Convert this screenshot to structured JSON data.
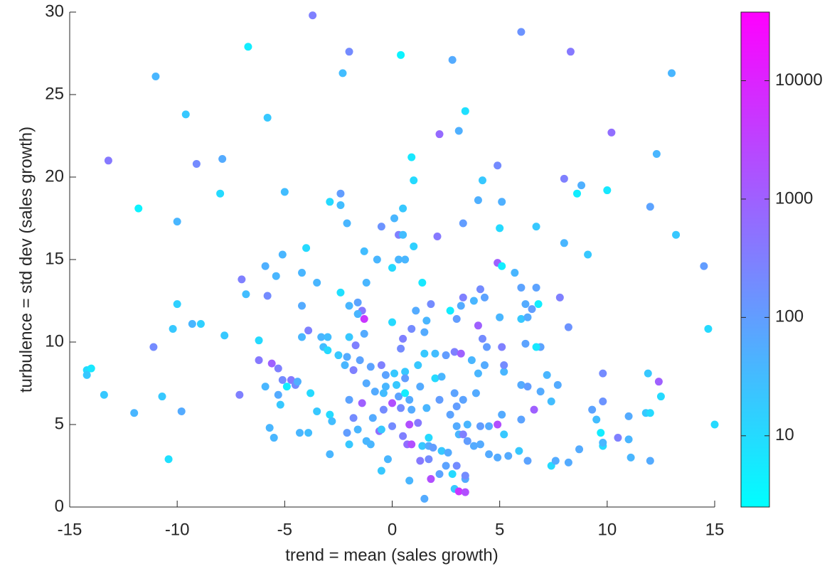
{
  "chart_data": {
    "type": "scatter",
    "xlabel": "trend = mean (sales growth)",
    "ylabel": "turbulence = std dev (sales growth)",
    "xlim": [
      -15,
      15
    ],
    "xticks": [
      -15,
      -10,
      -5,
      0,
      5,
      10,
      15
    ],
    "ylim": [
      0,
      30
    ],
    "yticks": [
      0,
      5,
      10,
      15,
      20,
      25,
      30
    ],
    "colorbar": {
      "log": true,
      "lim": [
        2.5,
        38000
      ],
      "ticks": [
        10,
        100,
        1000,
        10000
      ],
      "colormap": [
        "#00ffff",
        "#ff00ff"
      ]
    },
    "x": [
      -3.7,
      6.0,
      -6.7,
      -2.0,
      8.3,
      0.4,
      2.8,
      -11.0,
      -2.3,
      13.0,
      -9.6,
      -5.8,
      3.4,
      2.2,
      3.1,
      10.2,
      -13.2,
      -9.1,
      -7.9,
      0.9,
      12.3,
      -11.8,
      -8.0,
      -5.0,
      -2.4,
      1.0,
      4.2,
      4.9,
      8.0,
      8.8,
      8.6,
      10.0,
      -10.0,
      -2.9,
      -2.4,
      -2.1,
      -0.5,
      0.1,
      0.5,
      4.0,
      5.1,
      12.0,
      -4.0,
      -5.1,
      0.3,
      0.5,
      1.0,
      2.1,
      3.3,
      5.0,
      6.7,
      8.0,
      13.2,
      9.1,
      14.5,
      -1.3,
      -0.7,
      0.0,
      0.3,
      0.6,
      4.9,
      5.1,
      5.7,
      -5.9,
      -5.4,
      -4.2,
      -3.5,
      -7.0,
      -6.8,
      -5.8,
      -4.2,
      -2.4,
      -1.2,
      1.4,
      3.3,
      3.2,
      3.8,
      4.3,
      4.1,
      6.0,
      6.7,
      7.8,
      6.2,
      6.8,
      6.5,
      -10.0,
      -9.3,
      -8.9,
      -10.2,
      -7.8,
      -6.2,
      -11.1,
      -2.0,
      -1.6,
      -1.4,
      -1.3,
      -1.6,
      0.0,
      1.1,
      1.8,
      2.7,
      3.0,
      4.0,
      5.0,
      6.0,
      6.3,
      8.2,
      14.7,
      -4.2,
      -3.9,
      -3.3,
      -3.0,
      -2.0,
      -1.3,
      0.9,
      1.5,
      1.6,
      0.5,
      0.4,
      4.2,
      -14.2,
      -14.0,
      -14.2,
      -13.4,
      -12.0,
      -10.7,
      -9.8,
      -10.4,
      -7.1,
      -6.2,
      -5.6,
      -5.3,
      -5.1,
      -4.7,
      -4.5,
      -5.9,
      -5.3,
      -5.2,
      -4.9,
      -3.8,
      -4.4,
      -5.7,
      -5.5,
      -4.3,
      -3.9,
      -3.5,
      -2.9,
      -2.8,
      -2.9,
      -3.2,
      -3.0,
      -2.5,
      -2.1,
      -1.7,
      -1.5,
      -1.0,
      -0.5,
      -0.3,
      0.1,
      0.6,
      0.6,
      1.2,
      1.5,
      2.0,
      2.5,
      2.9,
      3.2,
      3.7,
      4.4,
      5.1,
      6.2,
      6.9,
      6.7,
      -2.2,
      -1.8,
      -1.2,
      -0.8,
      -0.3,
      0.3,
      0.6,
      0.8,
      1.3,
      2.0,
      2.3,
      2.9,
      3.3,
      3.9,
      4.0,
      4.3,
      5.2,
      5.2,
      6.0,
      6.3,
      6.9,
      7.2,
      7.7,
      9.8,
      11.9,
      12.4,
      12.5,
      -2.0,
      -1.4,
      -0.9,
      -0.4,
      0.0,
      0.4,
      0.9,
      1.6,
      2.2,
      2.7,
      3.0,
      3.5,
      4.1,
      4.5,
      4.9,
      5.1,
      5.2,
      6.0,
      6.6,
      7.4,
      9.3,
      9.5,
      9.8,
      11.0,
      11.8,
      12.0,
      15.0,
      -1.8,
      -2.1,
      -1.6,
      -0.6,
      -0.5,
      0.0,
      0.5,
      0.7,
      0.9,
      1.4,
      1.7,
      1.9,
      2.3,
      2.6,
      3.0,
      3.1,
      3.3,
      3.5,
      3.8,
      4.1,
      4.5,
      4.9,
      5.4,
      5.9,
      6.3,
      7.4,
      7.6,
      8.2,
      8.7,
      9.7,
      9.8,
      9.8,
      10.5,
      11.0,
      11.1,
      12.0,
      -2.0,
      -1.2,
      -1.0,
      -0.5,
      -0.2,
      1.3,
      1.7,
      1.8,
      2.2,
      2.5,
      2.8,
      3.0,
      2.9,
      3.1,
      3.4,
      3.4,
      3.4,
      0.8,
      1.5,
      1.7,
      1.2,
      0.8,
      -0.4,
      0.2
    ],
    "y": [
      29.8,
      28.8,
      27.9,
      27.6,
      27.6,
      27.4,
      27.1,
      26.1,
      26.3,
      26.3,
      23.8,
      23.6,
      24.0,
      22.6,
      22.8,
      22.7,
      21.0,
      20.8,
      21.1,
      21.2,
      21.4,
      18.1,
      19.0,
      19.1,
      19.0,
      19.8,
      19.8,
      20.7,
      19.9,
      19.5,
      19.0,
      19.2,
      17.3,
      18.5,
      18.3,
      17.2,
      17.0,
      17.5,
      18.1,
      18.6,
      18.5,
      18.2,
      15.7,
      15.3,
      16.5,
      16.5,
      15.8,
      16.4,
      17.2,
      16.9,
      17.0,
      16.0,
      16.5,
      15.3,
      14.6,
      15.5,
      15.0,
      14.5,
      15.0,
      15.0,
      14.8,
      14.6,
      14.2,
      14.6,
      14.0,
      14.2,
      13.6,
      13.8,
      12.9,
      12.8,
      12.2,
      13.0,
      13.6,
      13.6,
      12.7,
      12.2,
      12.5,
      12.7,
      13.2,
      13.3,
      13.3,
      12.7,
      12.3,
      12.3,
      12.0,
      12.3,
      11.1,
      11.1,
      10.8,
      10.4,
      10.1,
      9.7,
      12.2,
      12.4,
      11.9,
      11.4,
      11.7,
      11.2,
      11.9,
      12.3,
      11.9,
      11.4,
      11.0,
      11.5,
      11.4,
      11.5,
      10.9,
      10.8,
      10.3,
      10.7,
      10.3,
      10.3,
      10.3,
      10.5,
      10.8,
      10.6,
      11.3,
      10.2,
      9.6,
      10.2,
      8.3,
      8.4,
      8.0,
      6.8,
      5.7,
      6.7,
      5.8,
      2.9,
      6.8,
      8.9,
      8.7,
      8.4,
      7.7,
      7.7,
      7.4,
      7.3,
      6.8,
      6.2,
      7.3,
      6.9,
      7.6,
      4.8,
      4.2,
      4.5,
      4.5,
      5.8,
      5.6,
      5.2,
      3.2,
      9.7,
      9.5,
      9.2,
      9.1,
      9.8,
      8.9,
      8.5,
      8.6,
      8.0,
      8.1,
      8.2,
      7.8,
      8.6,
      9.3,
      9.3,
      9.2,
      9.4,
      9.3,
      8.9,
      9.7,
      9.7,
      9.9,
      9.7,
      9.7,
      8.6,
      8.3,
      7.5,
      7.0,
      7.3,
      6.7,
      6.9,
      6.5,
      7.3,
      7.8,
      7.9,
      6.9,
      6.5,
      6.9,
      8.1,
      8.6,
      8.2,
      8.6,
      7.4,
      7.3,
      7.0,
      8.0,
      7.4,
      8.1,
      8.1,
      7.6,
      6.7,
      6.5,
      6.3,
      5.4,
      5.9,
      6.3,
      6.0,
      5.9,
      6.0,
      6.5,
      5.6,
      6.1,
      5.0,
      4.9,
      4.9,
      5.0,
      5.6,
      4.4,
      5.3,
      5.9,
      6.4,
      5.9,
      5.3,
      6.4,
      5.5,
      5.7,
      5.7,
      5.0,
      5.4,
      4.5,
      4.7,
      4.6,
      4.7,
      4.9,
      4.3,
      3.8,
      3.8,
      3.7,
      3.7,
      3.6,
      3.4,
      3.3,
      4.9,
      4.4,
      4.4,
      4.0,
      3.7,
      3.8,
      3.2,
      3.0,
      3.1,
      3.4,
      2.8,
      2.5,
      2.8,
      2.7,
      3.5,
      4.5,
      3.7,
      3.9,
      4.2,
      4.1,
      3.0,
      2.8,
      3.8,
      4.0,
      3.8,
      2.2,
      2.9,
      2.8,
      2.9,
      1.7,
      2.0,
      2.5,
      2.0,
      2.5,
      1.1,
      0.95,
      0.9,
      1.7,
      1.9,
      1.6,
      0.5,
      4.2,
      5.1,
      5.0,
      6.9,
      7.4
    ],
    "c": [
      300,
      150,
      5,
      200,
      400,
      4,
      60,
      40,
      30,
      40,
      20,
      20,
      8,
      700,
      50,
      600,
      400,
      200,
      60,
      6,
      40,
      4,
      10,
      30,
      100,
      10,
      20,
      200,
      300,
      50,
      5,
      6,
      40,
      10,
      30,
      40,
      150,
      40,
      20,
      50,
      50,
      80,
      10,
      40,
      300,
      30,
      15,
      400,
      100,
      10,
      20,
      40,
      20,
      20,
      100,
      30,
      40,
      10,
      40,
      40,
      1000,
      5,
      40,
      50,
      40,
      40,
      40,
      300,
      30,
      200,
      60,
      8,
      40,
      6,
      300,
      60,
      40,
      80,
      200,
      80,
      80,
      300,
      60,
      5,
      100,
      15,
      40,
      15,
      20,
      20,
      10,
      200,
      40,
      80,
      400,
      5000,
      40,
      10,
      60,
      200,
      5,
      100,
      1000,
      40,
      20,
      60,
      150,
      10,
      40,
      300,
      40,
      30,
      20,
      60,
      200,
      60,
      40,
      300,
      200,
      200,
      10,
      6,
      20,
      20,
      40,
      20,
      60,
      8,
      300,
      400,
      1000,
      300,
      200,
      400,
      200,
      40,
      60,
      20,
      5,
      10,
      50,
      40,
      40,
      40,
      30,
      20,
      10,
      30,
      40,
      30,
      10,
      20,
      60,
      300,
      80,
      80,
      300,
      80,
      20,
      20,
      100,
      20,
      20,
      30,
      100,
      300,
      1000,
      40,
      100,
      300,
      80,
      80,
      6,
      40,
      300,
      60,
      60,
      40,
      80,
      5,
      60,
      60,
      10,
      40,
      80,
      80,
      60,
      40,
      60,
      40,
      200,
      60,
      100,
      60,
      40,
      60,
      200,
      20,
      1000,
      10,
      80,
      1000,
      60,
      200,
      2000,
      200,
      60,
      40,
      100,
      80,
      100,
      40,
      100,
      60,
      2000,
      60,
      20,
      80,
      1000,
      30,
      80,
      30,
      150,
      60,
      20,
      10,
      10,
      200,
      100,
      40,
      600,
      20,
      200,
      300,
      600,
      2000,
      20,
      60,
      100,
      20,
      60,
      60,
      40,
      300,
      100,
      60,
      60,
      60,
      60,
      60,
      20,
      80,
      10,
      60,
      60,
      60,
      5,
      10,
      40,
      300,
      40,
      40,
      60,
      20,
      40,
      40,
      20,
      40,
      400,
      200,
      2000,
      80,
      80,
      10,
      200,
      20,
      5000,
      2000,
      60,
      200,
      40,
      60,
      10,
      400,
      2000,
      30,
      20
    ]
  }
}
